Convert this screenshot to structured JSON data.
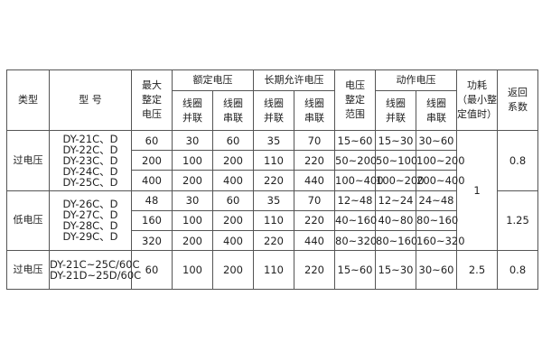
{
  "headers": {
    "type": "类型",
    "model": "型 号",
    "max_setting": [
      "最大",
      "整定",
      "电压"
    ],
    "rated": "额定电压",
    "long_term": "长期允许电压",
    "range": [
      "电压",
      "整定",
      "范围"
    ],
    "action": "动作电压",
    "power": [
      "功耗",
      "（最小整",
      "定值时）"
    ],
    "return_coef": [
      "返回",
      "系数"
    ],
    "parallel": [
      "线圈",
      "并联"
    ],
    "series": [
      "线圈",
      "串联"
    ]
  },
  "groups": [
    {
      "type": "过电压",
      "models": [
        "DY-21C、D",
        "DY-22C、D",
        "DY-23C、D",
        "DY-24C、D",
        "DY-25C、D"
      ],
      "return_coef": "0.8",
      "rows": [
        {
          "max": "60",
          "rated_p": "30",
          "rated_s": "60",
          "long_p": "35",
          "long_s": "70",
          "range": "15~60",
          "act_p": "15~30",
          "act_s": "30~60"
        },
        {
          "max": "200",
          "rated_p": "100",
          "rated_s": "200",
          "long_p": "110",
          "long_s": "220",
          "range": "50~200",
          "act_p": "50~100",
          "act_s": "100~200"
        },
        {
          "max": "400",
          "rated_p": "200",
          "rated_s": "400",
          "long_p": "220",
          "long_s": "440",
          "range": "100~400",
          "act_p": "100~200",
          "act_s": "200~400"
        }
      ]
    },
    {
      "type": "低电压",
      "models": [
        "DY-26C、D",
        "DY-27C、D",
        "DY-28C、D",
        "DY-29C、D"
      ],
      "return_coef": "1.25",
      "rows": [
        {
          "max": "48",
          "rated_p": "30",
          "rated_s": "60",
          "long_p": "35",
          "long_s": "70",
          "range": "12~48",
          "act_p": "12~24",
          "act_s": "24~48"
        },
        {
          "max": "160",
          "rated_p": "100",
          "rated_s": "200",
          "long_p": "110",
          "long_s": "220",
          "range": "40~160",
          "act_p": "40~80",
          "act_s": "80~160"
        },
        {
          "max": "320",
          "rated_p": "200",
          "rated_s": "400",
          "long_p": "220",
          "long_s": "440",
          "range": "80~320",
          "act_p": "80~160",
          "act_s": "160~320"
        }
      ]
    }
  ],
  "power_shared": "1",
  "last": {
    "type": "过电压",
    "models": [
      "DY-21C~25C/60C",
      "DY-21D~25D/60C"
    ],
    "max": "60",
    "rated_p": "100",
    "rated_s": "200",
    "long_p": "110",
    "long_s": "220",
    "range": "15~60",
    "act_p": "15~30",
    "act_s": "30~60",
    "power": "2.5",
    "return_coef": "0.8"
  }
}
